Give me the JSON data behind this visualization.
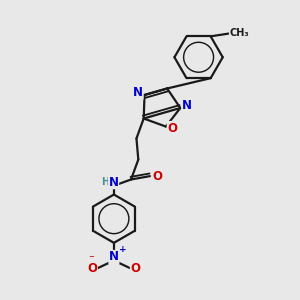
{
  "background_color": "#e8e8e8",
  "bond_color": "#1a1a1a",
  "bond_width": 1.6,
  "atom_colors": {
    "N": "#0000cc",
    "O": "#cc0000",
    "C": "#1a1a1a",
    "H": "#4a9090"
  },
  "font_size": 8.5,
  "font_size_small": 7.0,
  "xlim": [
    0,
    10
  ],
  "ylim": [
    0,
    10
  ]
}
